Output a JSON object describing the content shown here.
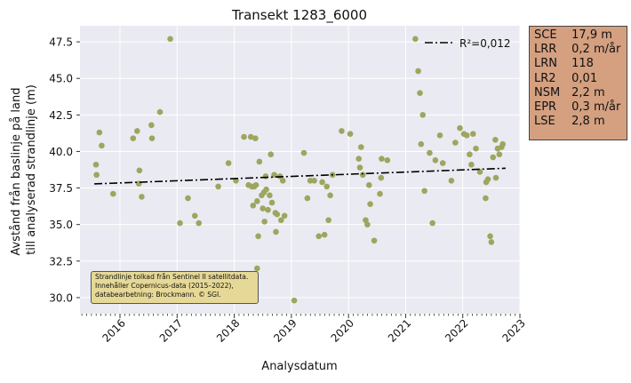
{
  "chart_data": {
    "type": "scatter",
    "title": "Transekt 1283_6000",
    "xlabel": "Analysdatum",
    "ylabel_lines": [
      "Avstånd från baslinje på land",
      "till analyserad strandlinje (m)"
    ],
    "xlim": [
      2015.3,
      2023.0
    ],
    "ylim": [
      28.9,
      48.6
    ],
    "x_ticks": [
      2016,
      2017,
      2018,
      2019,
      2020,
      2021,
      2022,
      2023
    ],
    "y_ticks": [
      30.0,
      32.5,
      35.0,
      37.5,
      40.0,
      42.5,
      45.0,
      47.5
    ],
    "grid": true,
    "point_color": "#9ea55e",
    "trend_color": "#000000",
    "trend_line": {
      "x": [
        2015.55,
        2022.75
      ],
      "y": [
        37.78,
        38.85
      ]
    },
    "legend": {
      "label": "R²=0,012",
      "placement": "top-right"
    },
    "points": [
      [
        2015.58,
        39.1
      ],
      [
        2015.59,
        38.4
      ],
      [
        2015.64,
        41.3
      ],
      [
        2015.68,
        40.4
      ],
      [
        2015.88,
        37.1
      ],
      [
        2016.23,
        40.9
      ],
      [
        2016.3,
        41.4
      ],
      [
        2016.33,
        37.8
      ],
      [
        2016.34,
        38.7
      ],
      [
        2016.38,
        36.9
      ],
      [
        2016.55,
        41.8
      ],
      [
        2016.56,
        40.9
      ],
      [
        2016.7,
        42.7
      ],
      [
        2016.88,
        47.7
      ],
      [
        2017.05,
        35.1
      ],
      [
        2017.19,
        36.8
      ],
      [
        2017.31,
        35.6
      ],
      [
        2017.38,
        35.1
      ],
      [
        2017.72,
        37.6
      ],
      [
        2017.9,
        39.2
      ],
      [
        2018.03,
        38.0
      ],
      [
        2018.17,
        41.0
      ],
      [
        2018.25,
        37.7
      ],
      [
        2018.29,
        41.0
      ],
      [
        2018.31,
        37.6
      ],
      [
        2018.33,
        36.3
      ],
      [
        2018.35,
        37.6
      ],
      [
        2018.37,
        40.9
      ],
      [
        2018.38,
        37.7
      ],
      [
        2018.4,
        36.6
      ],
      [
        2018.42,
        34.2
      ],
      [
        2018.44,
        39.3
      ],
      [
        2018.48,
        37.0
      ],
      [
        2018.5,
        36.1
      ],
      [
        2018.52,
        37.2
      ],
      [
        2018.53,
        35.2
      ],
      [
        2018.55,
        38.3
      ],
      [
        2018.56,
        37.4
      ],
      [
        2018.59,
        36.0
      ],
      [
        2018.62,
        37.0
      ],
      [
        2018.64,
        39.8
      ],
      [
        2018.66,
        36.5
      ],
      [
        2018.7,
        38.4
      ],
      [
        2018.72,
        35.8
      ],
      [
        2018.73,
        34.5
      ],
      [
        2018.75,
        35.7
      ],
      [
        2018.8,
        38.3
      ],
      [
        2018.82,
        35.3
      ],
      [
        2018.85,
        38.0
      ],
      [
        2018.88,
        35.6
      ],
      [
        2018.4,
        32.0
      ],
      [
        2019.05,
        29.8
      ],
      [
        2019.22,
        39.9
      ],
      [
        2019.28,
        36.8
      ],
      [
        2019.33,
        38.0
      ],
      [
        2019.4,
        38.0
      ],
      [
        2019.48,
        34.2
      ],
      [
        2019.54,
        37.9
      ],
      [
        2019.58,
        34.3
      ],
      [
        2019.62,
        37.6
      ],
      [
        2019.65,
        35.3
      ],
      [
        2019.68,
        37.0
      ],
      [
        2019.72,
        38.4
      ],
      [
        2019.88,
        41.4
      ],
      [
        2020.03,
        41.2
      ],
      [
        2020.18,
        39.5
      ],
      [
        2020.2,
        38.9
      ],
      [
        2020.22,
        40.3
      ],
      [
        2020.25,
        38.4
      ],
      [
        2020.3,
        35.3
      ],
      [
        2020.33,
        35.0
      ],
      [
        2020.36,
        37.7
      ],
      [
        2020.38,
        36.4
      ],
      [
        2020.45,
        33.9
      ],
      [
        2020.55,
        37.1
      ],
      [
        2020.57,
        38.2
      ],
      [
        2020.58,
        39.5
      ],
      [
        2020.68,
        39.4
      ],
      [
        2021.17,
        47.7
      ],
      [
        2021.22,
        45.5
      ],
      [
        2021.25,
        44.0
      ],
      [
        2021.27,
        40.5
      ],
      [
        2021.3,
        42.5
      ],
      [
        2021.33,
        37.3
      ],
      [
        2021.42,
        39.9
      ],
      [
        2021.47,
        35.1
      ],
      [
        2021.52,
        39.4
      ],
      [
        2021.6,
        41.1
      ],
      [
        2021.65,
        39.2
      ],
      [
        2021.8,
        38.0
      ],
      [
        2021.87,
        40.6
      ],
      [
        2021.95,
        41.6
      ],
      [
        2022.02,
        41.2
      ],
      [
        2022.07,
        41.1
      ],
      [
        2022.12,
        39.8
      ],
      [
        2022.15,
        39.1
      ],
      [
        2022.18,
        41.2
      ],
      [
        2022.23,
        40.2
      ],
      [
        2022.3,
        38.6
      ],
      [
        2022.4,
        36.8
      ],
      [
        2022.41,
        37.9
      ],
      [
        2022.44,
        38.1
      ],
      [
        2022.48,
        34.2
      ],
      [
        2022.5,
        33.8
      ],
      [
        2022.53,
        39.6
      ],
      [
        2022.57,
        40.8
      ],
      [
        2022.58,
        38.2
      ],
      [
        2022.61,
        40.2
      ],
      [
        2022.64,
        39.8
      ],
      [
        2022.68,
        40.3
      ],
      [
        2022.7,
        40.5
      ]
    ]
  },
  "stats": [
    {
      "key": "SCE",
      "value": "17,9 m"
    },
    {
      "key": "LRR",
      "value": "0,2 m/år"
    },
    {
      "key": "LRN",
      "value": "118"
    },
    {
      "key": "LR2",
      "value": "0,01"
    },
    {
      "key": "NSM",
      "value": "2,2 m"
    },
    {
      "key": "EPR",
      "value": "0,3 m/år"
    },
    {
      "key": "LSE",
      "value": "2,8 m"
    }
  ],
  "note": {
    "line1": "Strandlinje tolkad från Sentinel II satellitdata.",
    "line2": "Innehåller Copernicus-data (2015–2022),",
    "line3": "databearbetning: Brockmann. © SGI."
  }
}
